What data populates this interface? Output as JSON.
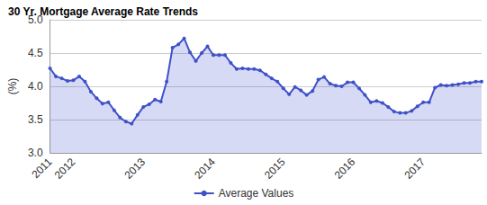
{
  "chart_data": {
    "type": "area",
    "title": "30 Yr. Mortgage Average Rate Trends",
    "y_label": "(%)",
    "categories": [
      "2011",
      null,
      null,
      null,
      "2012",
      null,
      null,
      null,
      null,
      null,
      null,
      null,
      null,
      null,
      null,
      null,
      "2013",
      null,
      null,
      null,
      null,
      null,
      null,
      null,
      null,
      null,
      null,
      null,
      "2014",
      null,
      null,
      null,
      null,
      null,
      null,
      null,
      null,
      null,
      null,
      null,
      "2015",
      null,
      null,
      null,
      null,
      null,
      null,
      null,
      null,
      null,
      null,
      null,
      "2016",
      null,
      null,
      null,
      null,
      null,
      null,
      null,
      null,
      null,
      null,
      null,
      "2017",
      null,
      null,
      null,
      null,
      null,
      null,
      null,
      null,
      null,
      null
    ],
    "series": [
      {
        "name": "Average Values",
        "color": "#3f51c9",
        "marker": "circle",
        "values": [
          4.27,
          4.15,
          4.12,
          4.08,
          4.09,
          4.15,
          4.07,
          3.92,
          3.82,
          3.74,
          3.76,
          3.64,
          3.53,
          3.47,
          3.44,
          3.57,
          3.69,
          3.73,
          3.8,
          3.77,
          4.07,
          4.58,
          4.63,
          4.72,
          4.51,
          4.38,
          4.5,
          4.6,
          4.47,
          4.47,
          4.47,
          4.35,
          4.26,
          4.27,
          4.26,
          4.26,
          4.24,
          4.18,
          4.12,
          4.07,
          3.97,
          3.88,
          3.99,
          3.94,
          3.87,
          3.93,
          4.1,
          4.14,
          4.04,
          4.01,
          4.0,
          4.06,
          4.06,
          3.97,
          3.87,
          3.76,
          3.78,
          3.75,
          3.69,
          3.62,
          3.6,
          3.6,
          3.63,
          3.7,
          3.76,
          3.76,
          3.98,
          4.02,
          4.01,
          4.02,
          4.03,
          4.05,
          4.05,
          4.07,
          4.07
        ]
      }
    ],
    "ylim": [
      3,
      5
    ],
    "yticks": [
      {
        "value": 3,
        "label": "3.0"
      },
      {
        "value": 3.5,
        "label": "3.5"
      },
      {
        "value": 4,
        "label": "4.0"
      },
      {
        "value": 4.5,
        "label": "4.5"
      },
      {
        "value": 5,
        "label": "5.0"
      }
    ],
    "grid": true,
    "legend": "bottom"
  }
}
